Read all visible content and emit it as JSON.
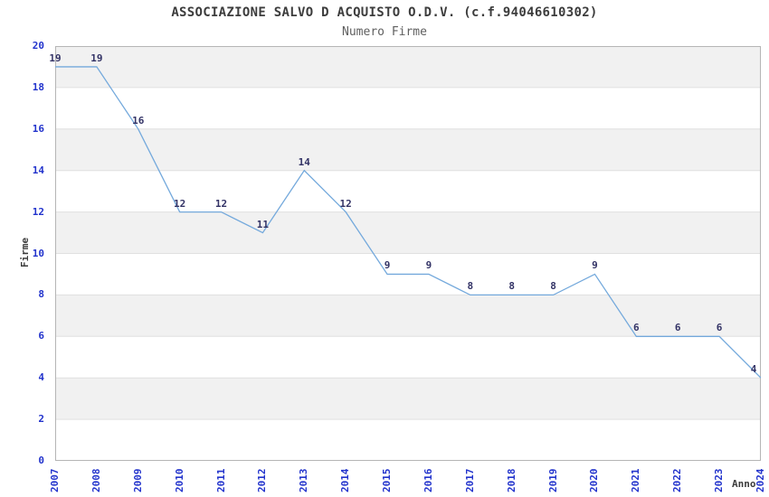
{
  "header": {
    "title": "ASSOCIAZIONE SALVO D ACQUISTO O.D.V. (c.f.94046610302)",
    "subtitle": "Numero Firme"
  },
  "chart_data": {
    "type": "line",
    "title": "ASSOCIAZIONE SALVO D ACQUISTO O.D.V. (c.f.94046610302)",
    "subtitle": "Numero Firme",
    "xlabel": "Anno",
    "ylabel": "Firme",
    "x": [
      2007,
      2008,
      2009,
      2010,
      2011,
      2012,
      2013,
      2014,
      2015,
      2016,
      2017,
      2018,
      2019,
      2020,
      2021,
      2022,
      2023,
      2024
    ],
    "series": [
      {
        "name": "Numero Firme",
        "values": [
          19,
          19,
          16,
          12,
          12,
          11,
          14,
          12,
          9,
          9,
          8,
          8,
          8,
          9,
          6,
          6,
          6,
          4
        ]
      }
    ],
    "ylim": [
      0,
      20
    ],
    "ytick_step": 2,
    "yticks": [
      0,
      2,
      4,
      6,
      8,
      10,
      12,
      14,
      16,
      18,
      20
    ],
    "point_labels_visible": true,
    "grid": "horizontal-bands",
    "legend_position": "none",
    "colors": {
      "line": "#74a9dc",
      "point_label": "#333366",
      "tick_label": "#2233cc",
      "title": "#3c3c3c",
      "subtitle": "#5f5f5f",
      "axis_label": "#3c3c3c",
      "band_gray": "#f1f1f1",
      "band_white": "#ffffff",
      "gridline": "#e0e0e0",
      "plot_border": "#b5b5b5",
      "background": "#ffffff"
    }
  }
}
